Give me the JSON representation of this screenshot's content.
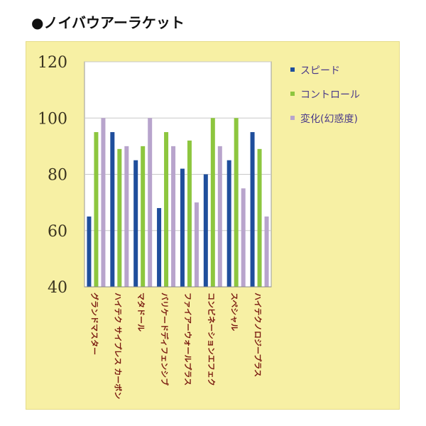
{
  "page": {
    "title": "●ノイバウアーラケット"
  },
  "chart_data": {
    "type": "bar",
    "categories": [
      "グランドマスター",
      "ハイテク サイプレス カーボン",
      "マタドール",
      "バリケードディフェンシブ",
      "ファイアーウォールプラス",
      "コンビネーションエフェク",
      "スペシャル",
      "ハイテクノロジープラス"
    ],
    "series": [
      {
        "name": "スピード",
        "color": "#1f4e9c",
        "values": [
          65,
          95,
          85,
          68,
          82,
          80,
          85,
          95
        ]
      },
      {
        "name": "コントロール",
        "color": "#8dc63f",
        "values": [
          95,
          89,
          90,
          95,
          92,
          100,
          100,
          89
        ]
      },
      {
        "name": "変化(幻惑度)",
        "color": "#b8a4cc",
        "values": [
          100,
          90,
          100,
          90,
          70,
          90,
          75,
          65
        ]
      }
    ],
    "yticks": [
      "40",
      "60",
      "80",
      "100",
      "120"
    ],
    "ylim": [
      40,
      120
    ],
    "grid": true,
    "legend": "right"
  }
}
